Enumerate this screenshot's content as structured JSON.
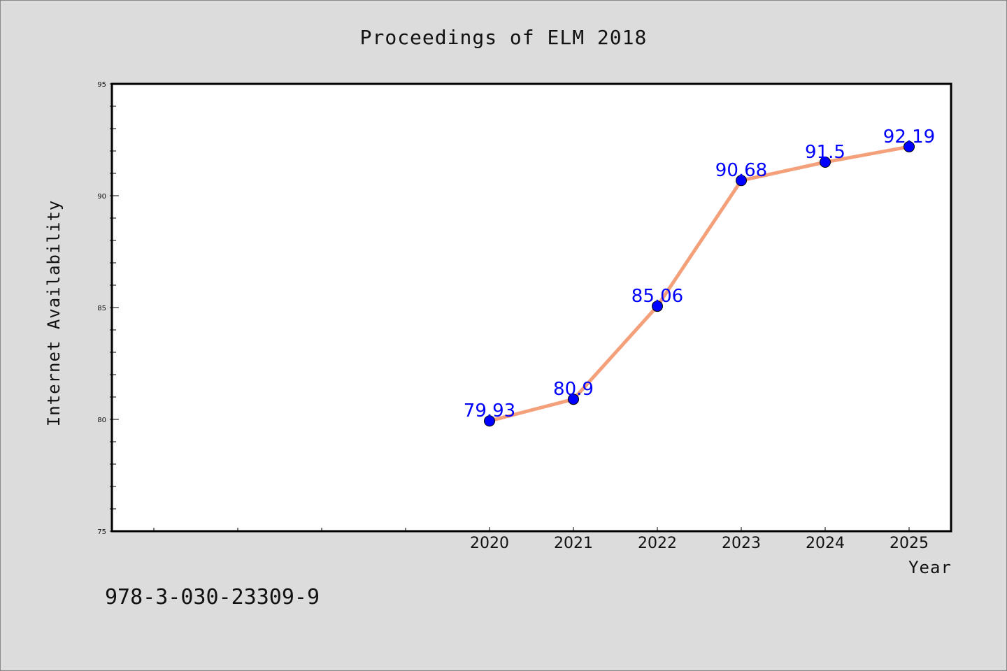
{
  "chart_data": {
    "type": "line",
    "title": "Proceedings of ELM 2018",
    "xlabel": "Year",
    "ylabel": "Internet Availability",
    "ylim": [
      75,
      95
    ],
    "y_major_ticks": [
      75,
      80,
      85,
      90,
      95
    ],
    "x_tick_labels": [
      "2020",
      "2021",
      "2022",
      "2023",
      "2024",
      "2025"
    ],
    "series": [
      {
        "x": [
          2020,
          2021,
          2022,
          2023,
          2024,
          2025
        ],
        "values": [
          79.93,
          80.9,
          85.06,
          90.68,
          91.5,
          92.19
        ],
        "data_labels": [
          "79.93",
          "80.9",
          "85.06",
          "90.68",
          "91.5",
          "92.19"
        ]
      }
    ],
    "grid": false,
    "colors": {
      "line": "#f4a07a",
      "marker": "#0000ff",
      "data_label": "#0000ff",
      "background": "#dcdcdc",
      "plot_area": "#ffffff"
    }
  },
  "footer": {
    "isbn": "978-3-030-23309-9"
  }
}
